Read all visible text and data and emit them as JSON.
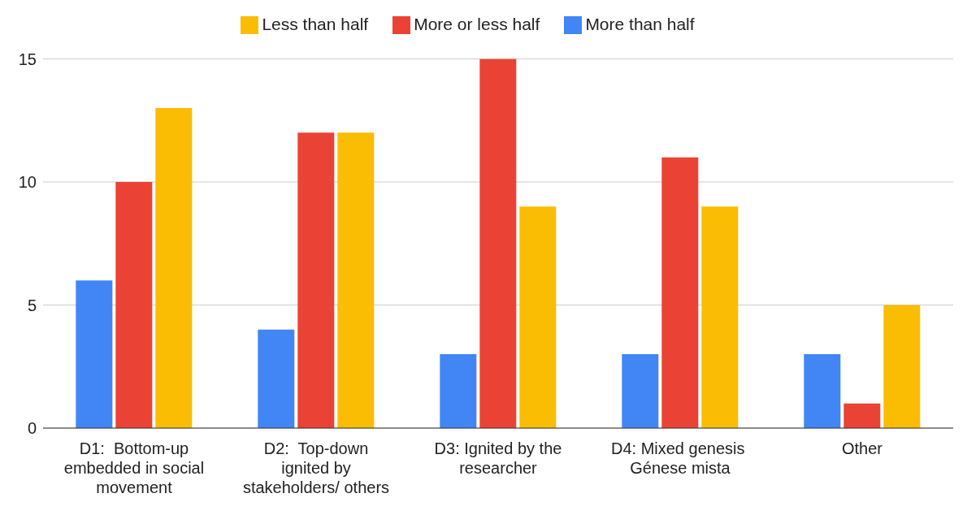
{
  "chart_data": {
    "type": "bar",
    "categories": [
      "D1:  Bottom-up embedded in social movement",
      "D2:  Top-down ignited by stakeholders/ others",
      "D3: Ignited by the researcher",
      "D4: Mixed genesis  Génese mista",
      "Other"
    ],
    "series": [
      {
        "name": "More than half",
        "color": "#4285f4",
        "values": [
          6,
          4,
          3,
          3,
          3
        ]
      },
      {
        "name": "More or less half",
        "color": "#ea4335",
        "values": [
          10,
          12,
          15,
          11,
          1
        ]
      },
      {
        "name": "Less than half",
        "color": "#fbbc04",
        "values": [
          13,
          12,
          9,
          9,
          5
        ]
      }
    ],
    "ylim": [
      0,
      15
    ],
    "yticks": [
      0,
      5,
      10,
      15
    ],
    "grid": "y",
    "legend": "top"
  }
}
